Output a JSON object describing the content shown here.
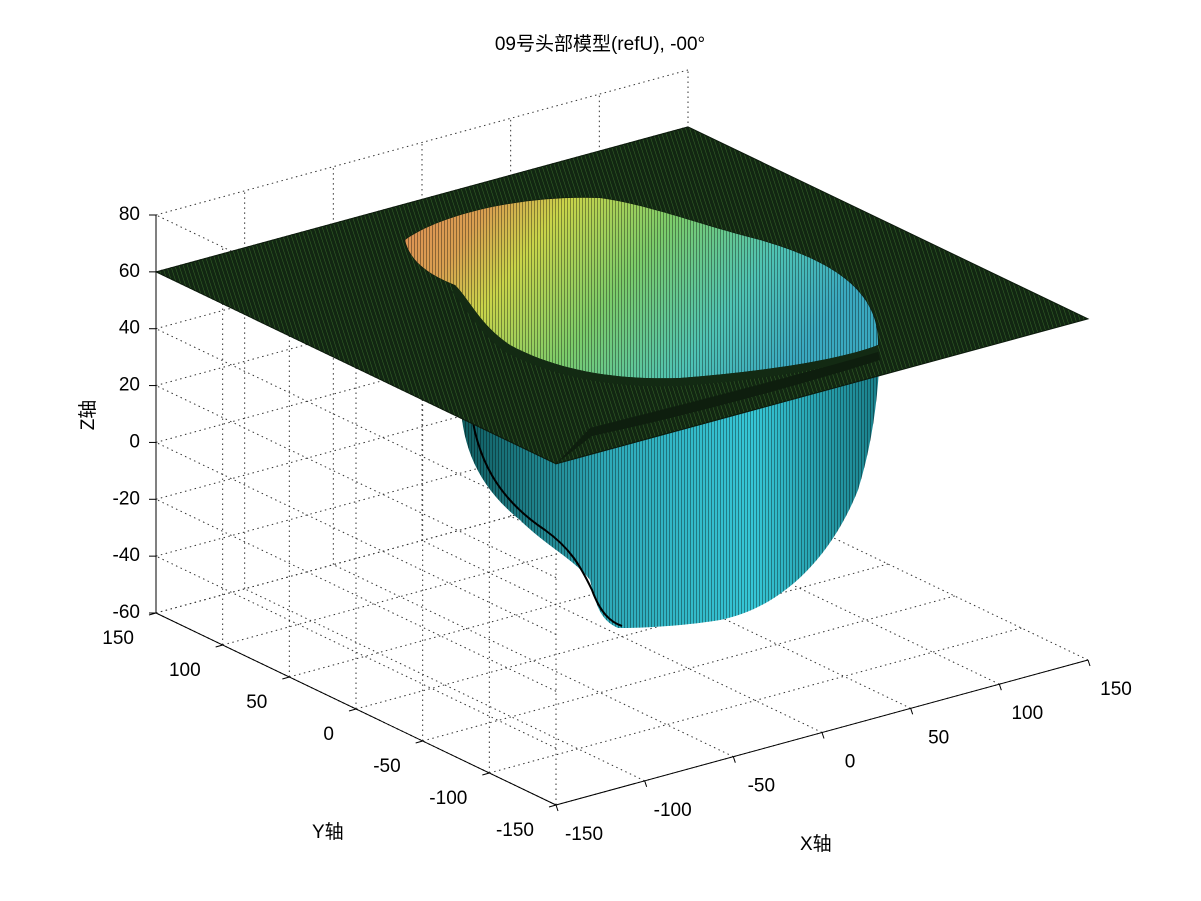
{
  "chart_data": {
    "type": "surface3d",
    "title": "09号头部模型(refU), -00°",
    "xlabel": "X轴",
    "ylabel": "Y轴",
    "zlabel": "Z轴",
    "xlim": [
      -150,
      150
    ],
    "ylim": [
      -150,
      150
    ],
    "zlim": [
      -60,
      80
    ],
    "xticks": [
      "-150",
      "-100",
      "-50",
      "0",
      "50",
      "100",
      "150"
    ],
    "yticks": [
      "-150",
      "-100",
      "-50",
      "0",
      "50",
      "100",
      "150"
    ],
    "zticks": [
      "-60",
      "-40",
      "-20",
      "0",
      "20",
      "40",
      "60",
      "80"
    ],
    "grid": true,
    "colormap": "jet",
    "flat_plane_z": 60,
    "plane_extent": {
      "x": [
        -150,
        150
      ],
      "y": [
        -150,
        150
      ]
    },
    "surface_depth_min": -60,
    "colors": {
      "plane": "#1a3a1a",
      "surface_body": "#2fb9c9",
      "surface_top_warm": "#d8d84a",
      "surface_top_hot": "#e09050",
      "mesh_line": "#000000"
    }
  }
}
